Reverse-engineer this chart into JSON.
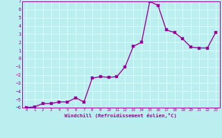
{
  "xlabel": "Windchill (Refroidissement éolien,°C)",
  "x": [
    0,
    1,
    2,
    3,
    4,
    5,
    6,
    7,
    8,
    9,
    10,
    11,
    12,
    13,
    14,
    15,
    16,
    17,
    18,
    19,
    20,
    21,
    22,
    23
  ],
  "y": [
    -6.0,
    -5.9,
    -5.5,
    -5.5,
    -5.3,
    -5.3,
    -4.8,
    -5.3,
    -2.4,
    -2.2,
    -2.3,
    -2.2,
    -1.0,
    1.5,
    2.0,
    7.0,
    6.5,
    3.5,
    3.2,
    2.4,
    1.4,
    1.3,
    1.3,
    3.2
  ],
  "ylim": [
    -6,
    7
  ],
  "xlim": [
    -0.5,
    23.5
  ],
  "yticks": [
    -6,
    -5,
    -4,
    -3,
    -2,
    -1,
    0,
    1,
    2,
    3,
    4,
    5,
    6,
    7
  ],
  "xticks": [
    0,
    1,
    2,
    3,
    4,
    5,
    6,
    7,
    8,
    9,
    10,
    11,
    12,
    13,
    14,
    15,
    16,
    17,
    18,
    19,
    20,
    21,
    22,
    23
  ],
  "line_color": "#990099",
  "marker_color": "#990099",
  "bg_color": "#bbeeee",
  "grid_color": "#ddffff",
  "axis_color": "#990099",
  "tick_label_color": "#990099",
  "xlabel_color": "#990099",
  "line_width": 1.0,
  "marker_size": 2.5
}
